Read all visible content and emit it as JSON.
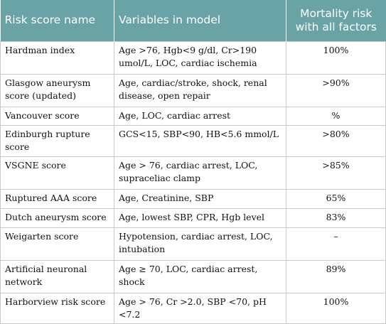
{
  "table": {
    "header": [
      "Risk score name",
      "Variables in model",
      "Mortality risk with all factors"
    ],
    "rows": [
      [
        "Hardman index",
        "Age >76, Hgb<9 g/dl, Cr>190 umol/L, LOC, cardiac ischemia",
        "100%"
      ],
      [
        "Glasgow aneurysm score (updated)",
        "Age, cardiac/stroke, shock, renal disease, open repair",
        ">90%"
      ],
      [
        "Vancouver score",
        "Age, LOC, cardiac arrest",
        "%"
      ],
      [
        "Edinburgh rupture score",
        "GCS<15, SBP<90, HB<5.6 mmol/L",
        ">80%"
      ],
      [
        "VSGNE score",
        "Age > 76, cardiac arrest, LOC, supraceliac clamp",
        ">85%"
      ],
      [
        "Ruptured AAA score",
        "Age, Creatinine, SBP",
        "65%"
      ],
      [
        "Dutch aneurysm score",
        "Age, lowest SBP, CPR, Hgb level",
        "83%"
      ],
      [
        "Weigarten score",
        "Hypotension, cardiac arrest, LOC, intubation",
        "–"
      ],
      [
        "Artificial neuronal network",
        "Age ≥ 70, LOC, cardiac arrest, shock",
        "89%"
      ],
      [
        "Harborview risk score",
        "Age > 76, Cr >2.0, SBP <70, pH <7.2",
        "100%"
      ]
    ]
  }
}
